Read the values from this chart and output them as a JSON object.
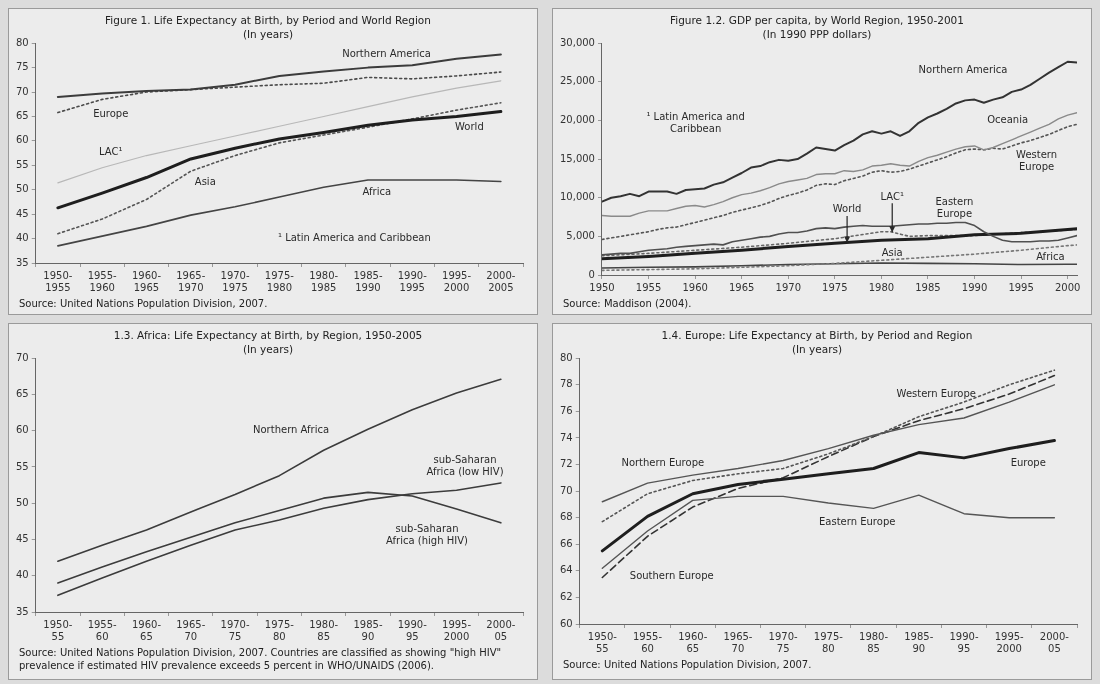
{
  "chart_data": [
    {
      "type": "line",
      "title": "Figure 1. Life Expectancy at Birth, by Period and World Region",
      "subtitle": "(In years)",
      "categories": [
        "1950-1955",
        "1955-1960",
        "1960-1965",
        "1965-1970",
        "1970-1975",
        "1975-1980",
        "1980-1985",
        "1985-1990",
        "1990-1995",
        "1995-2000",
        "2000-2005"
      ],
      "ylim": [
        35,
        80
      ],
      "yticks": [
        35,
        40,
        45,
        50,
        55,
        60,
        65,
        70,
        75,
        80
      ],
      "series": [
        {
          "name": "Northern America",
          "color": "#3c3c3c",
          "line_style": "solid",
          "values": [
            69,
            69.7,
            70.2,
            70.5,
            71.5,
            73.3,
            74.2,
            75,
            75.5,
            76.8,
            77.7
          ]
        },
        {
          "name": "Europe",
          "color": "#4a4a4a",
          "line_style": "dotted",
          "values": [
            65.8,
            68.5,
            70,
            70.5,
            71,
            71.5,
            71.8,
            73,
            72.7,
            73.3,
            74.1
          ]
        },
        {
          "name": "LAC¹",
          "color": "#b8b8b8",
          "line_style": "solid",
          "values": [
            51.4,
            54.5,
            57,
            59,
            61,
            63,
            65,
            67,
            69,
            70.8,
            72.3
          ]
        },
        {
          "name": "World",
          "color": "#1e1e1e",
          "line_style": "solid",
          "values": [
            46.3,
            49.3,
            52.5,
            56.3,
            58.5,
            60.4,
            61.7,
            63.2,
            64.3,
            65,
            66
          ]
        },
        {
          "name": "Asia",
          "color": "#555555",
          "line_style": "dotted",
          "values": [
            41,
            44,
            48,
            53.8,
            57,
            59.6,
            61.2,
            62.8,
            64.5,
            66.3,
            67.8
          ]
        },
        {
          "name": "Africa",
          "color": "#444444",
          "line_style": "solid",
          "values": [
            38.5,
            40.5,
            42.5,
            44.8,
            46.5,
            48.5,
            50.5,
            52,
            52,
            52,
            51.7
          ]
        }
      ],
      "annotations": [
        "¹ Latin America and Caribbean",
        "Source: United Nations Population Division, 2007."
      ]
    },
    {
      "type": "line",
      "title": "Figure 1.2. GDP per capita, by World Region, 1950-2001",
      "subtitle": "(In 1990 PPP dollars)",
      "x": [
        1950,
        1951,
        1952,
        1953,
        1954,
        1955,
        1956,
        1957,
        1958,
        1959,
        1960,
        1961,
        1962,
        1963,
        1964,
        1965,
        1966,
        1967,
        1968,
        1969,
        1970,
        1971,
        1972,
        1973,
        1974,
        1975,
        1976,
        1977,
        1978,
        1979,
        1980,
        1981,
        1982,
        1983,
        1984,
        1985,
        1986,
        1987,
        1988,
        1989,
        1990,
        1991,
        1992,
        1993,
        1994,
        1995,
        1996,
        1997,
        1998,
        1999,
        2000,
        2001
      ],
      "xlim": [
        1950,
        2001
      ],
      "xticks": [
        1950,
        1955,
        1960,
        1965,
        1970,
        1975,
        1980,
        1985,
        1990,
        1995,
        2000
      ],
      "ylim": [
        0,
        30000
      ],
      "yticks": [
        0,
        {
          "value": 5000,
          "label": "5,000"
        },
        {
          "value": 10000,
          "label": "10,000"
        },
        {
          "value": 15000,
          "label": "15,000"
        },
        {
          "value": 20000,
          "label": "20,000"
        },
        {
          "value": 25000,
          "label": "25,000"
        },
        {
          "value": 30000,
          "label": "30,000"
        }
      ],
      "series": [
        {
          "name": "Northern America",
          "color": "#333333",
          "line_style": "solid",
          "values": [
            9500,
            10000,
            10200,
            10500,
            10200,
            10800,
            10800,
            10800,
            10500,
            11000,
            11100,
            11200,
            11700,
            12000,
            12600,
            13200,
            13900,
            14100,
            14600,
            14900,
            14800,
            15000,
            15700,
            16500,
            16300,
            16100,
            16800,
            17400,
            18200,
            18600,
            18300,
            18600,
            18000,
            18600,
            19700,
            20400,
            20900,
            21500,
            22200,
            22600,
            22700,
            22300,
            22700,
            23000,
            23700,
            24000,
            24600,
            25400,
            26200,
            26900,
            27600,
            27500
          ]
        },
        {
          "name": "Oceania",
          "color": "#8a8a8a",
          "line_style": "solid",
          "values": [
            7700,
            7600,
            7600,
            7600,
            8000,
            8300,
            8300,
            8300,
            8600,
            8900,
            9000,
            8800,
            9100,
            9500,
            10000,
            10400,
            10600,
            10900,
            11300,
            11800,
            12100,
            12300,
            12500,
            13000,
            13100,
            13100,
            13500,
            13400,
            13600,
            14100,
            14200,
            14400,
            14200,
            14100,
            14700,
            15200,
            15500,
            15900,
            16300,
            16600,
            16700,
            16200,
            16500,
            17000,
            17500,
            18000,
            18500,
            19000,
            19500,
            20200,
            20700,
            21000
          ]
        },
        {
          "name": "Western Europe",
          "color": "#555555",
          "line_style": "dotted",
          "values": [
            4600,
            4800,
            5000,
            5200,
            5400,
            5600,
            5900,
            6100,
            6200,
            6500,
            6800,
            7100,
            7400,
            7700,
            8100,
            8400,
            8700,
            9000,
            9400,
            9900,
            10300,
            10600,
            11000,
            11600,
            11800,
            11700,
            12200,
            12500,
            12800,
            13300,
            13500,
            13300,
            13400,
            13700,
            14100,
            14500,
            14900,
            15300,
            15800,
            16200,
            16300,
            16200,
            16400,
            16300,
            16700,
            17100,
            17400,
            17800,
            18200,
            18700,
            19200,
            19500
          ]
        },
        {
          "name": "Eastern Europe",
          "color": "#505050",
          "line_style": "solid",
          "values": [
            2600,
            2700,
            2800,
            2800,
            3000,
            3200,
            3300,
            3400,
            3600,
            3700,
            3800,
            3900,
            4000,
            3900,
            4300,
            4500,
            4700,
            4900,
            5000,
            5300,
            5500,
            5500,
            5700,
            6000,
            6100,
            6000,
            6200,
            6300,
            6400,
            6300,
            6300,
            6300,
            6400,
            6500,
            6600,
            6600,
            6700,
            6700,
            6800,
            6800,
            6400,
            5600,
            5000,
            4500,
            4300,
            4300,
            4300,
            4400,
            4400,
            4500,
            4800,
            5100
          ]
        },
        {
          "name": "World",
          "color": "#1e1e1e",
          "line_style": "solid",
          "x": [
            1950,
            1955,
            1960,
            1965,
            1970,
            1975,
            1980,
            1985,
            1990,
            1995,
            2000,
            2001
          ],
          "values": [
            2100,
            2400,
            2800,
            3200,
            3700,
            4100,
            4500,
            4700,
            5200,
            5400,
            5900,
            6000
          ]
        },
        {
          "name": "LAC¹",
          "color": "#666666",
          "line_style": "dotted",
          "x": [
            1950,
            1955,
            1960,
            1965,
            1970,
            1975,
            1980,
            1981,
            1983,
            1985,
            1990,
            1995,
            2000,
            2001
          ],
          "values": [
            2500,
            2800,
            3200,
            3600,
            4100,
            4700,
            5600,
            5600,
            5000,
            5100,
            5100,
            5500,
            5800,
            5900
          ]
        },
        {
          "name": "Asia",
          "color": "#777777",
          "line_style": "dotted",
          "x": [
            1950,
            1955,
            1960,
            1965,
            1970,
            1975,
            1980,
            1985,
            1990,
            1995,
            2000,
            2001
          ],
          "values": [
            600,
            700,
            800,
            1000,
            1200,
            1500,
            1900,
            2300,
            2700,
            3200,
            3800,
            3900
          ]
        },
        {
          "name": "Africa",
          "color": "#444444",
          "line_style": "solid",
          "x": [
            1950,
            1955,
            1960,
            1965,
            1970,
            1975,
            1980,
            1985,
            1990,
            1995,
            2000,
            2001
          ],
          "values": [
            900,
            1000,
            1050,
            1200,
            1350,
            1450,
            1550,
            1500,
            1450,
            1350,
            1400,
            1400
          ]
        }
      ],
      "annotations": [
        "¹ Latin America and Caribbean",
        "Source: Maddison (2004)."
      ]
    },
    {
      "type": "line",
      "title": "1.3. Africa: Life Expectancy at Birth, by Region, 1950-2005",
      "subtitle": "(In years)",
      "categories": [
        "1950-55",
        "1955-60",
        "1960-65",
        "1965-70",
        "1970-75",
        "1975-80",
        "1980-85",
        "1985-90",
        "1990-95",
        "1995-2000",
        "2000-05"
      ],
      "ylim": [
        35,
        70
      ],
      "yticks": [
        35,
        40,
        45,
        50,
        55,
        60,
        65,
        70
      ],
      "series": [
        {
          "name": "Northern Africa",
          "color": "#3c3c3c",
          "line_style": "solid",
          "values": [
            42,
            44.2,
            46.3,
            48.8,
            51.2,
            53.8,
            57.3,
            60.2,
            62.9,
            65.2,
            67.1
          ]
        },
        {
          "name": "sub-Saharan Africa (low HIV)",
          "color": "#3c3c3c",
          "line_style": "solid",
          "values": [
            37.3,
            39.7,
            42,
            44.2,
            46.3,
            47.7,
            49.3,
            50.5,
            51.3,
            51.8,
            52.8
          ]
        },
        {
          "name": "sub-Saharan Africa (high HIV)",
          "color": "#3c3c3c",
          "line_style": "solid",
          "values": [
            39,
            41.2,
            43.3,
            45.3,
            47.3,
            49,
            50.7,
            51.5,
            51,
            49.2,
            47.3
          ]
        }
      ],
      "annotations": [
        "Source: United Nations Population Division, 2007. Countries are classified as showing \"high HIV\" prevalence if estimated HIV prevalence exceeds 5 percent in WHO/UNAIDS (2006)."
      ]
    },
    {
      "type": "line",
      "title": "1.4. Europe: Life Expectancy at Birth, by Period and Region",
      "subtitle": "(In years)",
      "categories": [
        "1950-55",
        "1955-60",
        "1960-65",
        "1965-70",
        "1970-75",
        "1975-80",
        "1980-85",
        "1985-90",
        "1990-95",
        "1995-2000",
        "2000-05"
      ],
      "ylim": [
        60,
        80
      ],
      "yticks": [
        60,
        62,
        64,
        66,
        68,
        70,
        72,
        74,
        76,
        78,
        80
      ],
      "series": [
        {
          "name": "Northern Europe",
          "color": "#555555",
          "line_style": "solid",
          "values": [
            69.2,
            70.6,
            71.2,
            71.7,
            72.3,
            73.2,
            74.2,
            75,
            75.5,
            76.7,
            78
          ]
        },
        {
          "name": "Western Europe",
          "color": "#555555",
          "line_style": "dotted",
          "values": [
            67.7,
            69.8,
            70.8,
            71.3,
            71.7,
            72.8,
            74.1,
            75.6,
            76.7,
            78,
            79.1
          ]
        },
        {
          "name": "Europe",
          "color": "#1e1e1e",
          "line_style": "solid",
          "values": [
            65.5,
            68.1,
            69.8,
            70.5,
            70.9,
            71.3,
            71.7,
            72.9,
            72.5,
            73.2,
            73.8
          ]
        },
        {
          "name": "Eastern Europe",
          "color": "#555555",
          "line_style": "solid",
          "values": [
            64.2,
            67,
            69.3,
            69.6,
            69.6,
            69.1,
            68.7,
            69.7,
            68.3,
            68,
            68
          ]
        },
        {
          "name": "Southern Europe",
          "color": "#333333",
          "line_style": "dashed",
          "values": [
            63.5,
            66.6,
            68.8,
            70.2,
            71,
            72.6,
            74.1,
            75.3,
            76.2,
            77.3,
            78.7
          ]
        }
      ],
      "annotations": [
        "Source: United Nations Population Division, 2007."
      ]
    }
  ]
}
